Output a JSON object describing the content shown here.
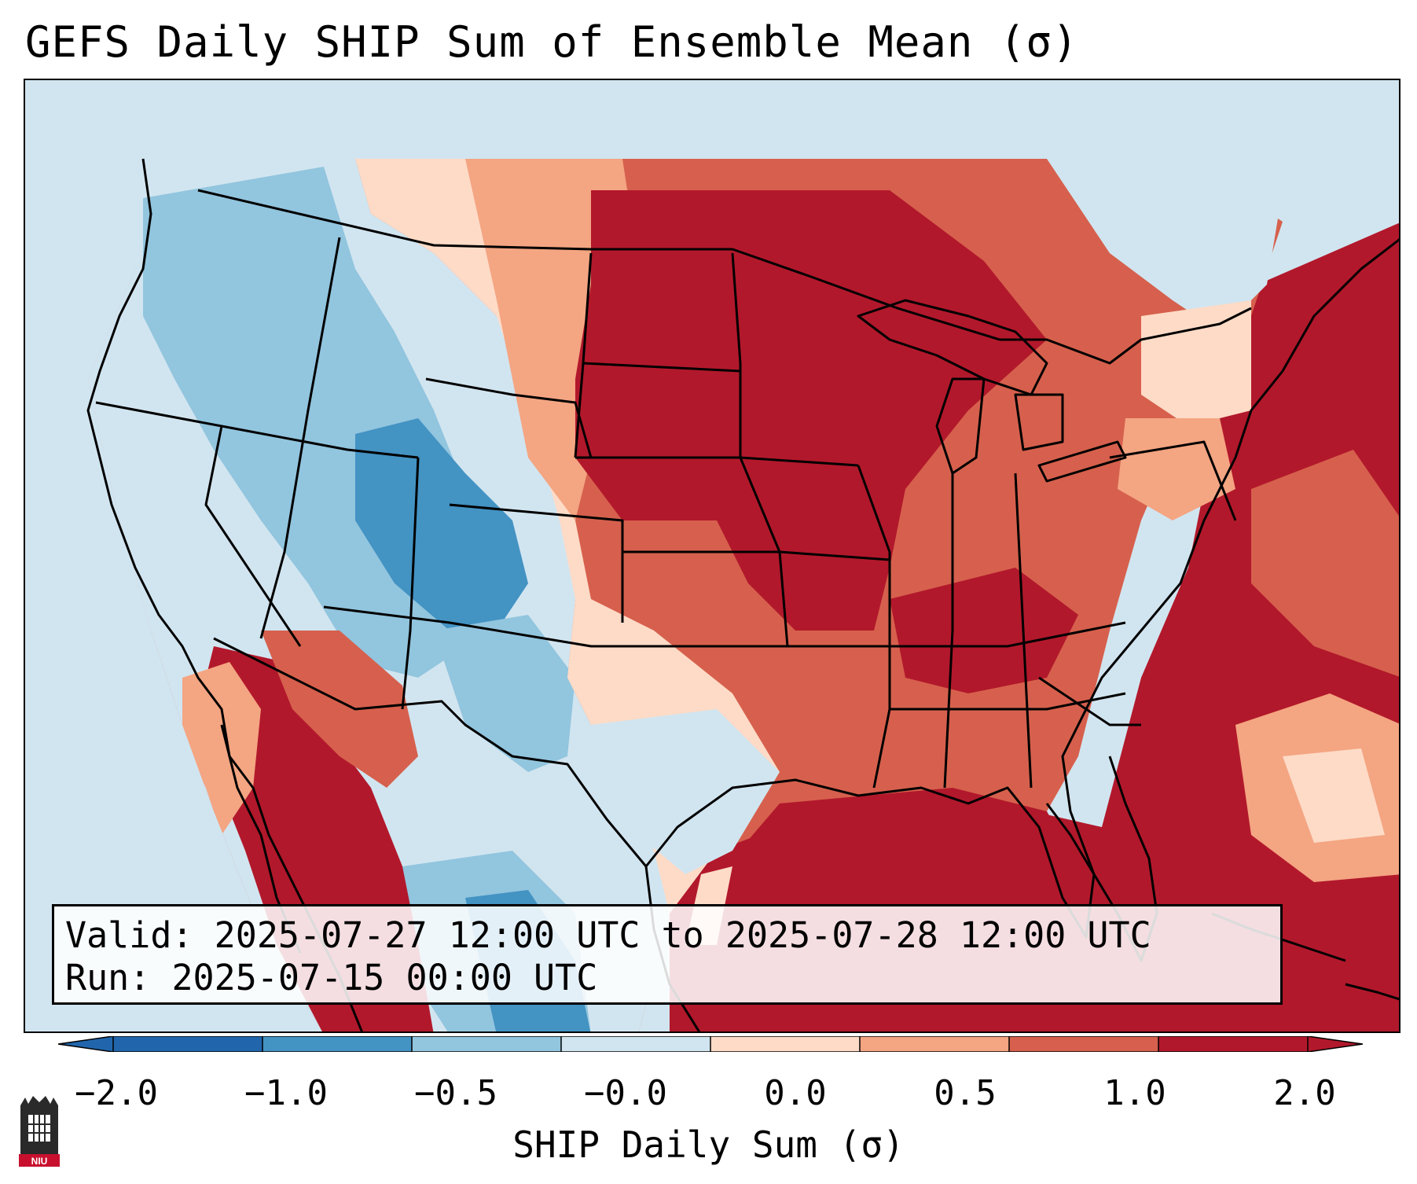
{
  "header": {
    "title": "GEFS Daily SHIP Sum of Ensemble Mean (σ)"
  },
  "info": {
    "valid_line": "Valid: 2025-07-27 12:00 UTC to 2025-07-28 12:00 UTC",
    "run_line": "Run:   2025-07-15 00:00 UTC"
  },
  "colorbar": {
    "label": "SHIP Daily Sum (σ)",
    "ticks": [
      "−2.0",
      "−1.0",
      "−0.5",
      "−0.0",
      "0.0",
      "0.5",
      "1.0",
      "2.0"
    ],
    "colors": [
      "#2166ac",
      "#4393c3",
      "#92c5de",
      "#d1e5f0",
      "#fddbc7",
      "#f4a582",
      "#d6604d",
      "#b2182b"
    ],
    "extend": "both"
  },
  "logo": {
    "text": "NIU"
  },
  "map": {
    "ocean_color": "#d1e5f0",
    "outline_color": "#000000"
  }
}
